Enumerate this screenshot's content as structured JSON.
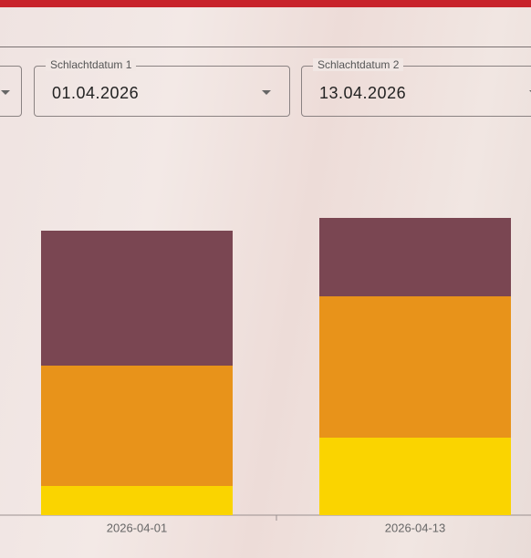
{
  "filters": [
    {
      "label": "Schlachtdatum 1",
      "value": "01.04.2026"
    },
    {
      "label": "Schlachtdatum 2",
      "value": "13.04.2026"
    }
  ],
  "chart_data": {
    "type": "stacked_bar",
    "categories": [
      "2026-04-01",
      "2026-04-13"
    ],
    "series": [
      {
        "color": "#fad400",
        "values": [
          32,
          85
        ]
      },
      {
        "color": "#e8931a",
        "values": [
          132,
          155
        ]
      },
      {
        "color": "#7a4652",
        "values": [
          148,
          86
        ]
      }
    ],
    "ylim": [
      0,
      340
    ]
  }
}
